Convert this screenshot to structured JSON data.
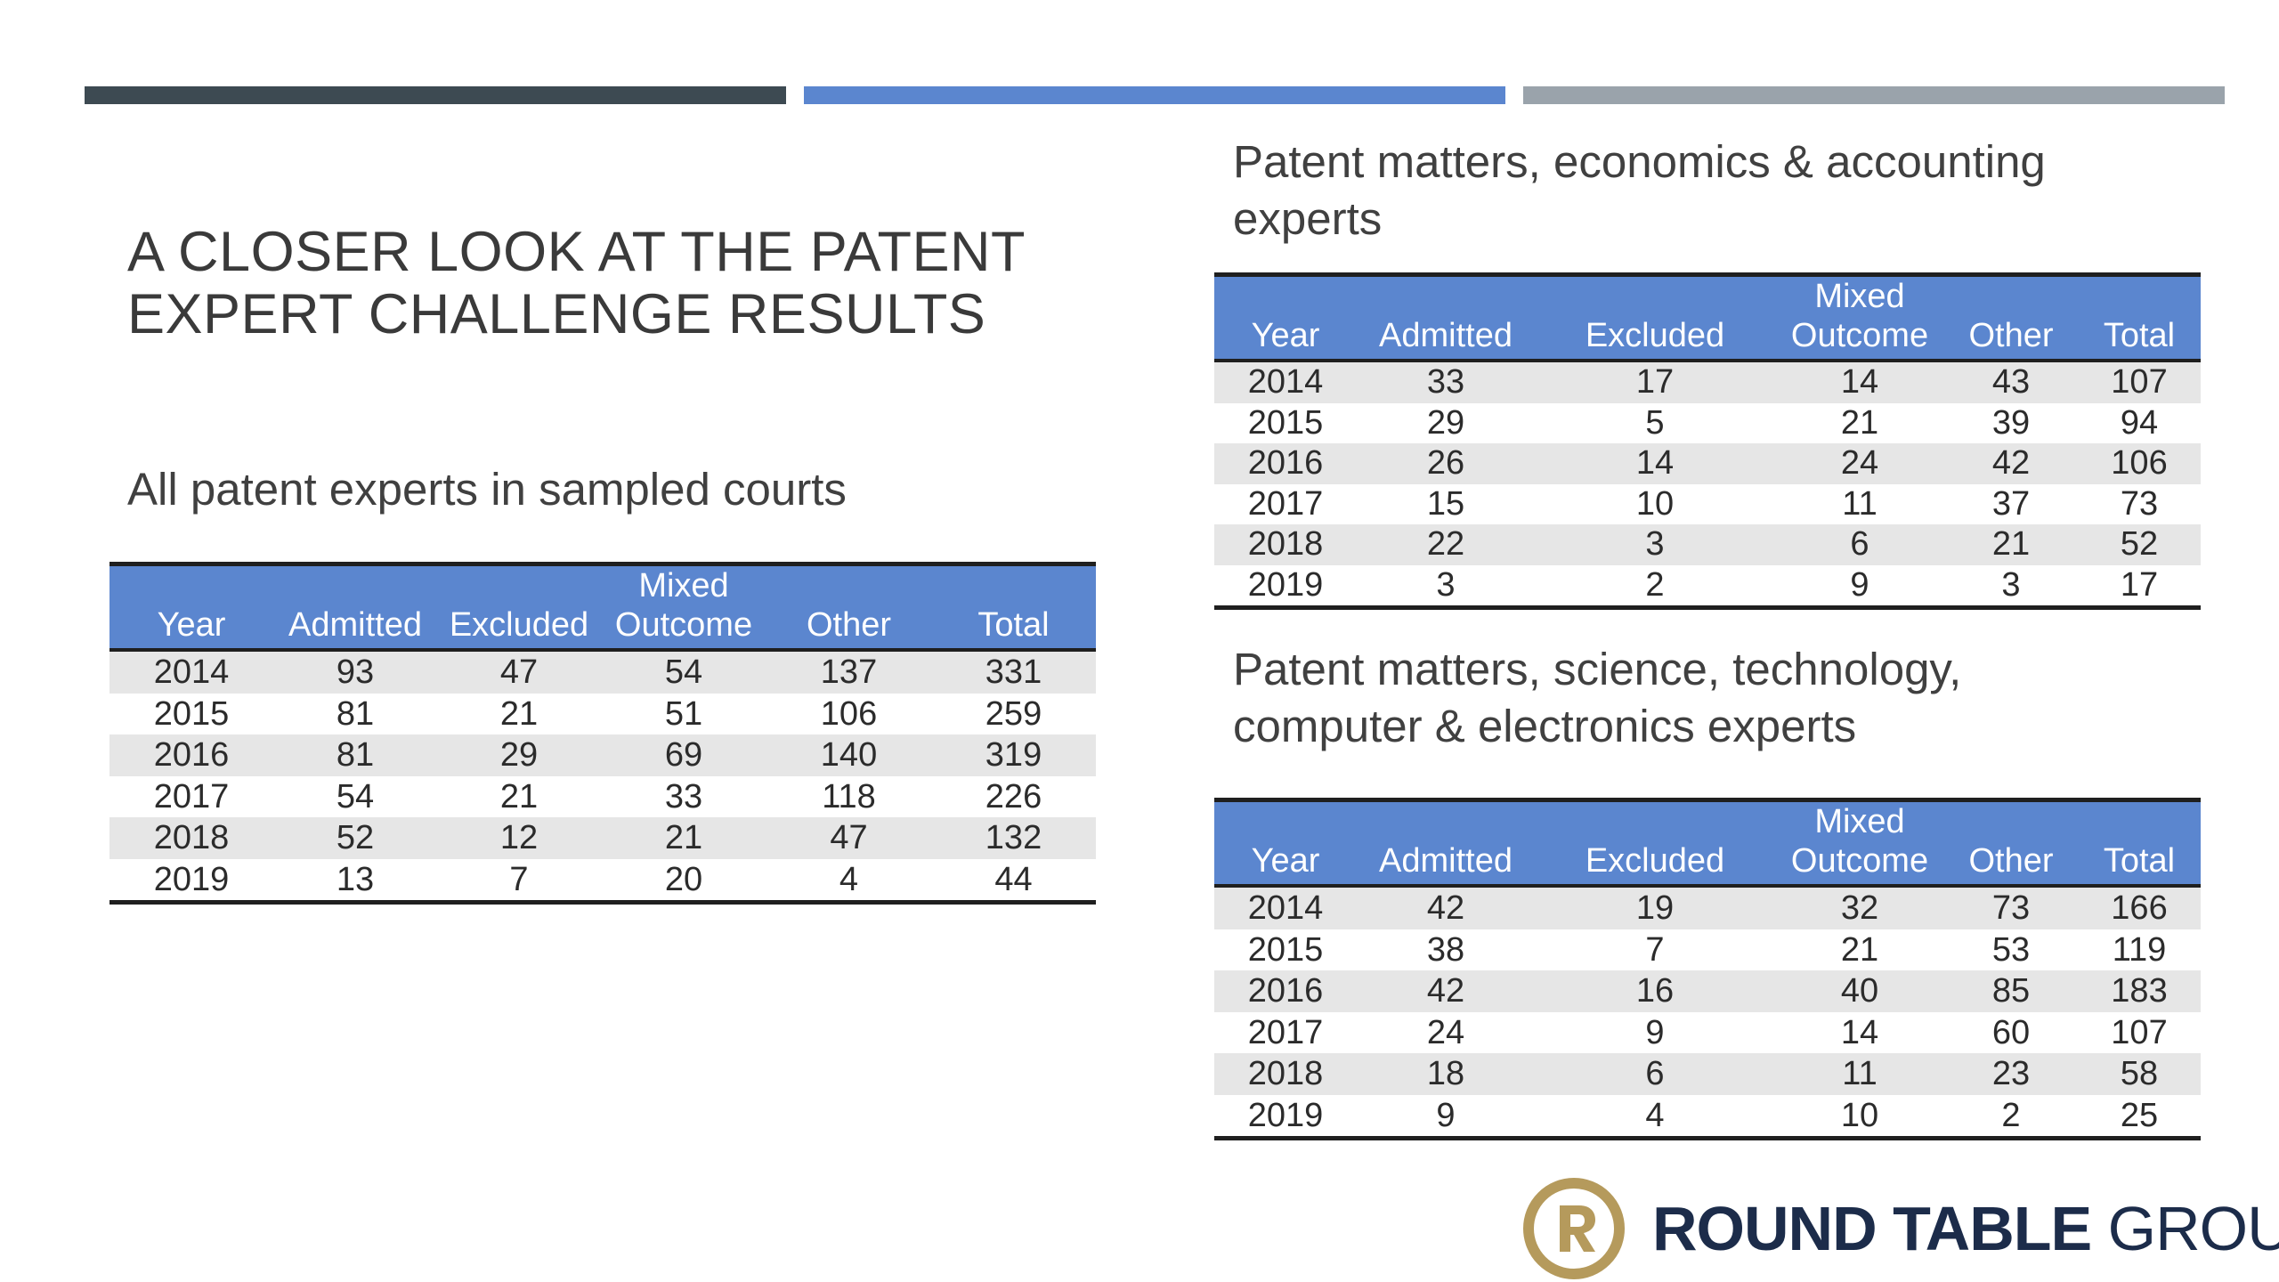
{
  "slide": {
    "title_line1": "A CLOSER LOOK AT THE PATENT",
    "title_line2": "EXPERT CHALLENGE RESULTS",
    "accent_colors": [
      "#3d4a52",
      "#5b86cf",
      "#9aa3ab"
    ]
  },
  "tables": {
    "all": {
      "caption": "All patent experts in sampled courts",
      "header": {
        "year": "Year",
        "admitted": "Admitted",
        "excluded": "Excluded",
        "mixed_line1": "Mixed",
        "mixed_line2": "Outcome",
        "other": "Other",
        "total": "Total"
      },
      "rows": [
        [
          "2014",
          "93",
          "47",
          "54",
          "137",
          "331"
        ],
        [
          "2015",
          "81",
          "21",
          "51",
          "106",
          "259"
        ],
        [
          "2016",
          "81",
          "29",
          "69",
          "140",
          "319"
        ],
        [
          "2017",
          "54",
          "21",
          "33",
          "118",
          "226"
        ],
        [
          "2018",
          "52",
          "12",
          "21",
          "47",
          "132"
        ],
        [
          "2019",
          "13",
          "7",
          "20",
          "4",
          "44"
        ]
      ]
    },
    "econ": {
      "caption_line1": "Patent matters, economics & accounting",
      "caption_line2": "experts",
      "header": {
        "year": "Year",
        "admitted": "Admitted",
        "excluded": "Excluded",
        "mixed_line1": "Mixed",
        "mixed_line2": "Outcome",
        "other": "Other",
        "total": "Total"
      },
      "rows": [
        [
          "2014",
          "33",
          "17",
          "14",
          "43",
          "107"
        ],
        [
          "2015",
          "29",
          "5",
          "21",
          "39",
          "94"
        ],
        [
          "2016",
          "26",
          "14",
          "24",
          "42",
          "106"
        ],
        [
          "2017",
          "15",
          "10",
          "11",
          "37",
          "73"
        ],
        [
          "2018",
          "22",
          "3",
          "6",
          "21",
          "52"
        ],
        [
          "2019",
          "3",
          "2",
          "9",
          "3",
          "17"
        ]
      ]
    },
    "sci": {
      "caption_line1": "Patent matters, science, technology,",
      "caption_line2": "computer & electronics experts",
      "header": {
        "year": "Year",
        "admitted": "Admitted",
        "excluded": "Excluded",
        "mixed_line1": "Mixed",
        "mixed_line2": "Outcome",
        "other": "Other",
        "total": "Total"
      },
      "rows": [
        [
          "2014",
          "42",
          "19",
          "32",
          "73",
          "166"
        ],
        [
          "2015",
          "38",
          "7",
          "21",
          "53",
          "119"
        ],
        [
          "2016",
          "42",
          "16",
          "40",
          "85",
          "183"
        ],
        [
          "2017",
          "24",
          "9",
          "14",
          "60",
          "107"
        ],
        [
          "2018",
          "18",
          "6",
          "11",
          "23",
          "58"
        ],
        [
          "2019",
          "9",
          "4",
          "10",
          "2",
          "25"
        ]
      ]
    }
  },
  "logo": {
    "icon": "round-table-r-logo-icon",
    "name_bold": "ROUND TABLE",
    "name_light": " GROUP",
    "gold": "#b59a5c",
    "navy": "#1c2c4a"
  }
}
